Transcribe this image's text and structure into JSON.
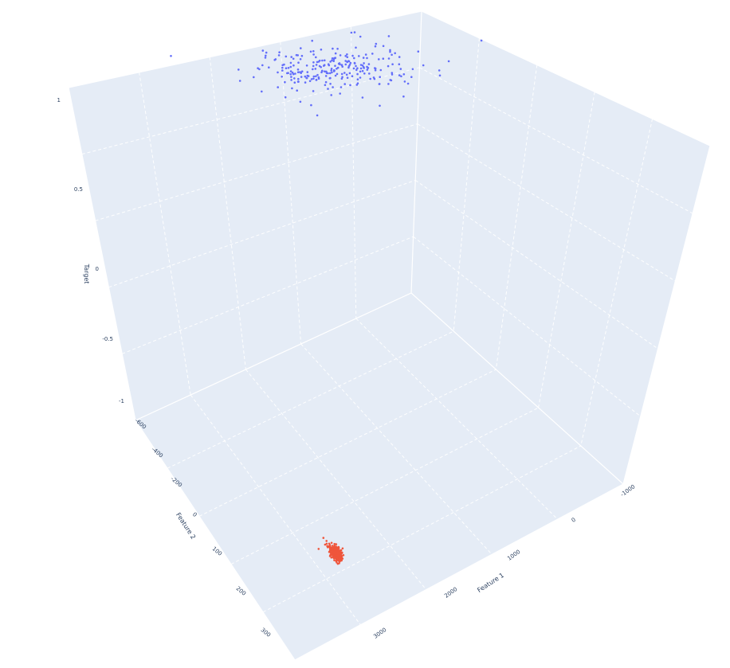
{
  "chart_data": {
    "type": "scatter3d",
    "axes": {
      "x": {
        "title": "Feature 1",
        "range": [
          -1000,
          3000
        ],
        "tick_labels": [
          "-1000",
          "0",
          "1000",
          "2000",
          "3000"
        ]
      },
      "y": {
        "title": "Feature 2",
        "range": [
          -600,
          300
        ],
        "tick_labels": [
          "-600",
          "-400",
          "-200",
          "0",
          "100",
          "200",
          "300"
        ]
      },
      "z": {
        "title": "Target",
        "range": [
          -1,
          1
        ],
        "tick_labels": [
          "-1",
          "-0.5",
          "0",
          "0.5",
          "1"
        ]
      }
    },
    "grid": true,
    "series": [
      {
        "color": "#636efa",
        "target": 1,
        "cluster": {
          "feature1_center": 1400,
          "feature1_spread": 900,
          "feature2_center": -430,
          "feature2_spread": 60,
          "approx_points": 260
        }
      },
      {
        "color": "#ef553b",
        "target": -1,
        "cluster": {
          "feature1_center": 60,
          "feature1_spread": 30,
          "feature2_center": 60,
          "feature2_spread": 15,
          "approx_points": 300
        }
      }
    ],
    "scene_background": "#e5ecf6"
  }
}
